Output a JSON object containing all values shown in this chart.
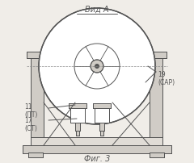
{
  "bg_color": "#f0ede8",
  "line_color": "#555555",
  "title": "Вид А",
  "fig_label": "Фиг. 3",
  "label_19": "19\n(САР)",
  "label_11": "11\n(ПТ)",
  "label_17": "17\n(СТ)"
}
